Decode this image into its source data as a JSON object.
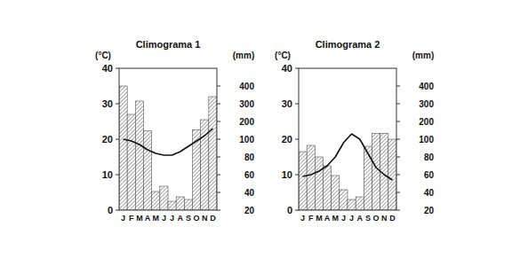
{
  "chart_data": [
    {
      "type": "bar",
      "title": "Climograma 1",
      "ylabel": "(°C)",
      "y2label": "(mm)",
      "categories": [
        "J",
        "F",
        "M",
        "A",
        "M",
        "J",
        "J",
        "A",
        "S",
        "O",
        "N",
        "D"
      ],
      "ylim": [
        0,
        40
      ],
      "yticks": [
        0,
        10,
        20,
        30,
        40
      ],
      "y2lim": [
        20,
        500
      ],
      "y2ticks": [
        20,
        40,
        60,
        80,
        100,
        200,
        300,
        400
      ],
      "series": [
        {
          "type": "bar",
          "axis": "y2",
          "color": "#8a8a8a",
          "values": [
            400,
            240,
            315,
            148,
            41,
            47,
            30,
            35,
            32,
            152,
            210,
            340
          ]
        },
        {
          "type": "line",
          "color": "#111111",
          "values": [
            20,
            19.5,
            18.5,
            17,
            16,
            15.5,
            15.5,
            16.5,
            18,
            19.5,
            21,
            23
          ]
        }
      ]
    },
    {
      "type": "bar",
      "title": "Climograma 2",
      "ylabel": "(°C)",
      "y2label": "(mm)",
      "categories": [
        "J",
        "F",
        "M",
        "A",
        "M",
        "J",
        "J",
        "A",
        "S",
        "O",
        "N",
        "D"
      ],
      "ylim": [
        0,
        40
      ],
      "yticks": [
        0,
        10,
        20,
        30,
        40
      ],
      "y2lim": [
        20,
        500
      ],
      "y2ticks": [
        20,
        40,
        60,
        80,
        100,
        200,
        300,
        400
      ],
      "series": [
        {
          "type": "bar",
          "axis": "y2",
          "color": "#8a8a8a",
          "values": [
            86,
            93,
            80,
            70,
            59,
            43,
            32,
            35,
            92,
            133,
            133,
            100
          ]
        },
        {
          "type": "line",
          "color": "#111111",
          "values": [
            9.5,
            10,
            11,
            12.5,
            15,
            19,
            21.5,
            20,
            16,
            12,
            10,
            8.5
          ]
        }
      ]
    }
  ]
}
